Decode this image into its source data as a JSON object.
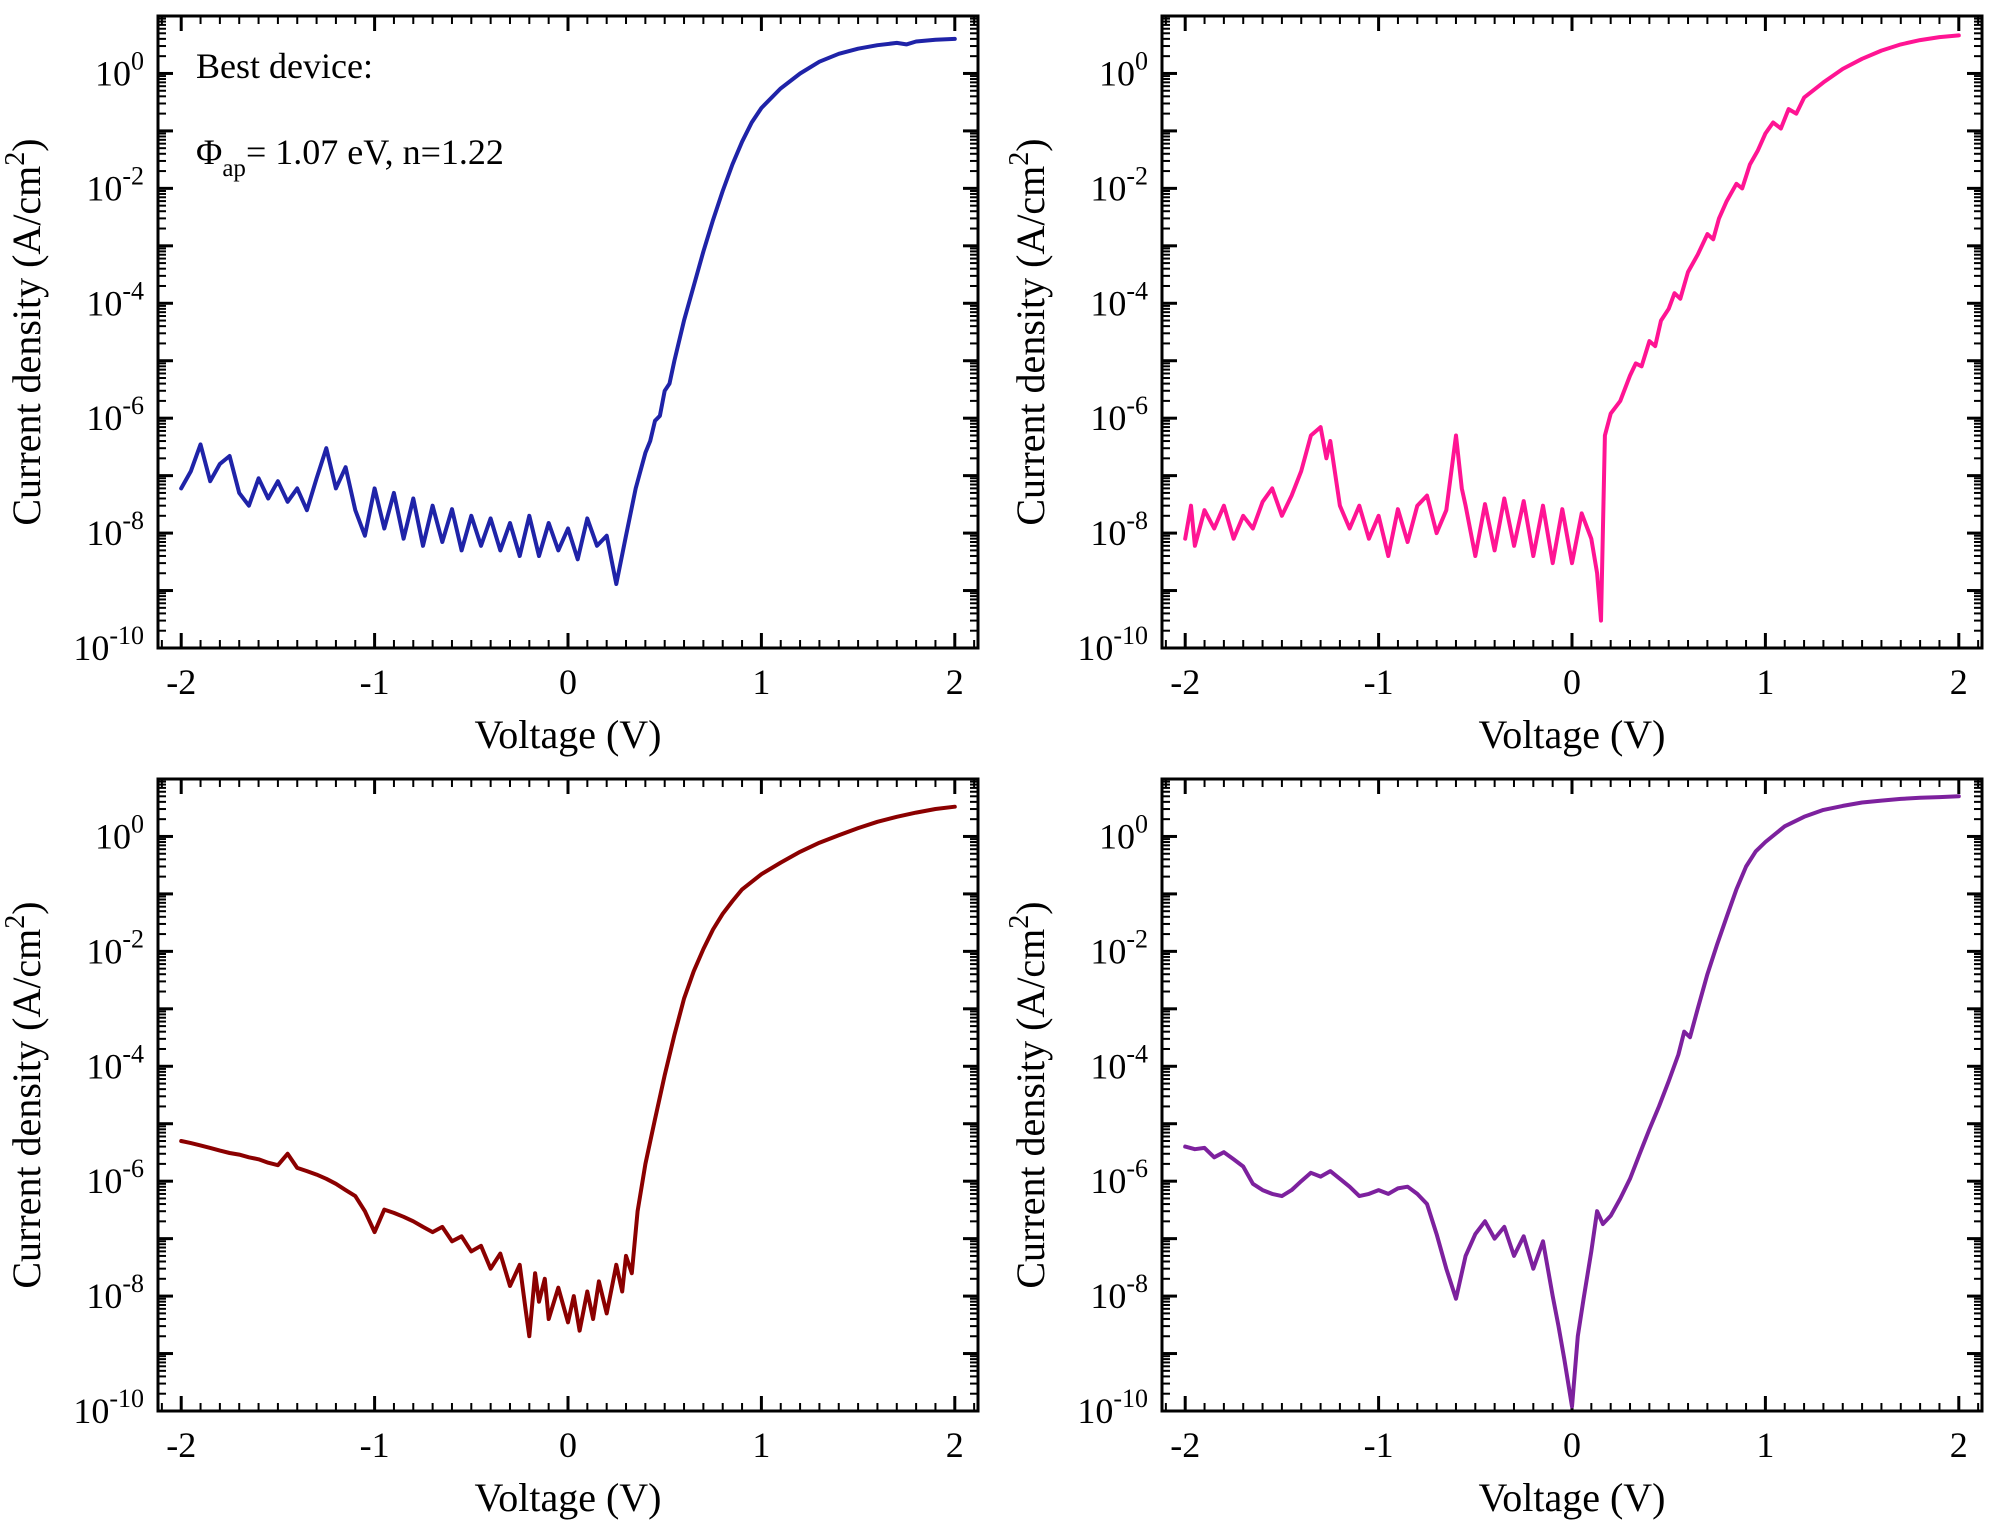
{
  "page": {
    "background": "#ffffff"
  },
  "axes": {
    "x_label": "Voltage (V)",
    "y_label_pre": "Current density (A/cm",
    "y_label_sup": "2",
    "y_label_post": ")",
    "x_ticks": [
      -2,
      -1,
      0,
      1,
      2
    ],
    "x_tick_labels": [
      "-2",
      "-1",
      "0",
      "1",
      "2"
    ],
    "x_minor_step": 0.1,
    "xlim_draw": [
      -2.12,
      2.12
    ],
    "y_decade_min": -10,
    "y_decade_max": 1,
    "y_label_decades": [
      0,
      -2,
      -4,
      -6,
      -8,
      -10
    ],
    "base_label": "10"
  },
  "annotation": {
    "line1": "Best device:",
    "phi": "Φ",
    "phi_sub": "ap",
    "line2_rest": "= 1.07 eV, n=1.22"
  },
  "chart_data": [
    {
      "type": "line",
      "position": "top-left",
      "color": "#1f23a8",
      "title": "",
      "xlabel": "Voltage (V)",
      "ylabel": "Current density (A/cm2)",
      "xlim": [
        -2,
        2
      ],
      "ylim": [
        1e-10,
        10
      ],
      "legend": "none",
      "grid": false,
      "annotation": true,
      "points": [
        [
          -2.0,
          6e-08
        ],
        [
          -1.95,
          1.2e-07
        ],
        [
          -1.9,
          3.5e-07
        ],
        [
          -1.85,
          8e-08
        ],
        [
          -1.8,
          1.6e-07
        ],
        [
          -1.75,
          2.2e-07
        ],
        [
          -1.7,
          5e-08
        ],
        [
          -1.65,
          3e-08
        ],
        [
          -1.6,
          9e-08
        ],
        [
          -1.55,
          4e-08
        ],
        [
          -1.5,
          8e-08
        ],
        [
          -1.45,
          3.5e-08
        ],
        [
          -1.4,
          6e-08
        ],
        [
          -1.35,
          2.5e-08
        ],
        [
          -1.3,
          9e-08
        ],
        [
          -1.25,
          3e-07
        ],
        [
          -1.2,
          6e-08
        ],
        [
          -1.15,
          1.4e-07
        ],
        [
          -1.1,
          2.5e-08
        ],
        [
          -1.05,
          9e-09
        ],
        [
          -1.0,
          6e-08
        ],
        [
          -0.95,
          1.2e-08
        ],
        [
          -0.9,
          5e-08
        ],
        [
          -0.85,
          8e-09
        ],
        [
          -0.8,
          4e-08
        ],
        [
          -0.75,
          6e-09
        ],
        [
          -0.7,
          3e-08
        ],
        [
          -0.65,
          7e-09
        ],
        [
          -0.6,
          2.6e-08
        ],
        [
          -0.55,
          5e-09
        ],
        [
          -0.5,
          2e-08
        ],
        [
          -0.45,
          6e-09
        ],
        [
          -0.4,
          1.8e-08
        ],
        [
          -0.35,
          5e-09
        ],
        [
          -0.3,
          1.5e-08
        ],
        [
          -0.25,
          4e-09
        ],
        [
          -0.2,
          2e-08
        ],
        [
          -0.15,
          4e-09
        ],
        [
          -0.1,
          1.5e-08
        ],
        [
          -0.05,
          5e-09
        ],
        [
          0.0,
          1.2e-08
        ],
        [
          0.05,
          3.5e-09
        ],
        [
          0.1,
          1.8e-08
        ],
        [
          0.15,
          6e-09
        ],
        [
          0.2,
          9e-09
        ],
        [
          0.25,
          1.3e-09
        ],
        [
          0.3,
          9e-09
        ],
        [
          0.35,
          6e-08
        ],
        [
          0.4,
          2.5e-07
        ],
        [
          0.425,
          4e-07
        ],
        [
          0.45,
          9e-07
        ],
        [
          0.475,
          1.1e-06
        ],
        [
          0.5,
          3e-06
        ],
        [
          0.525,
          4e-06
        ],
        [
          0.55,
          1e-05
        ],
        [
          0.6,
          5e-05
        ],
        [
          0.65,
          0.0002
        ],
        [
          0.7,
          0.0008
        ],
        [
          0.75,
          0.0028
        ],
        [
          0.8,
          0.009
        ],
        [
          0.85,
          0.026
        ],
        [
          0.9,
          0.065
        ],
        [
          0.95,
          0.14
        ],
        [
          1.0,
          0.25
        ],
        [
          1.1,
          0.55
        ],
        [
          1.2,
          1.0
        ],
        [
          1.3,
          1.6
        ],
        [
          1.4,
          2.2
        ],
        [
          1.5,
          2.7
        ],
        [
          1.6,
          3.1
        ],
        [
          1.7,
          3.4
        ],
        [
          1.75,
          3.2
        ],
        [
          1.8,
          3.6
        ],
        [
          1.9,
          3.85
        ],
        [
          2.0,
          4.0
        ]
      ]
    },
    {
      "type": "line",
      "position": "top-right",
      "color": "#ff1493",
      "title": "",
      "xlabel": "Voltage (V)",
      "ylabel": "Current density (A/cm2)",
      "xlim": [
        -2,
        2
      ],
      "ylim": [
        1e-10,
        10
      ],
      "legend": "none",
      "grid": false,
      "annotation": false,
      "points": [
        [
          -2.0,
          8e-09
        ],
        [
          -1.97,
          3e-08
        ],
        [
          -1.95,
          6e-09
        ],
        [
          -1.9,
          2.5e-08
        ],
        [
          -1.85,
          1.2e-08
        ],
        [
          -1.8,
          3e-08
        ],
        [
          -1.75,
          8e-09
        ],
        [
          -1.7,
          2e-08
        ],
        [
          -1.65,
          1.2e-08
        ],
        [
          -1.6,
          3.5e-08
        ],
        [
          -1.55,
          6e-08
        ],
        [
          -1.5,
          2e-08
        ],
        [
          -1.45,
          4.5e-08
        ],
        [
          -1.4,
          1.2e-07
        ],
        [
          -1.35,
          5e-07
        ],
        [
          -1.3,
          7e-07
        ],
        [
          -1.27,
          2e-07
        ],
        [
          -1.25,
          4e-07
        ],
        [
          -1.2,
          3e-08
        ],
        [
          -1.15,
          1.2e-08
        ],
        [
          -1.1,
          3e-08
        ],
        [
          -1.05,
          8e-09
        ],
        [
          -1.0,
          2e-08
        ],
        [
          -0.95,
          4e-09
        ],
        [
          -0.9,
          2.6e-08
        ],
        [
          -0.85,
          7e-09
        ],
        [
          -0.8,
          3e-08
        ],
        [
          -0.75,
          4.5e-08
        ],
        [
          -0.7,
          1e-08
        ],
        [
          -0.65,
          2.5e-08
        ],
        [
          -0.6,
          5e-07
        ],
        [
          -0.57,
          6e-08
        ],
        [
          -0.55,
          3e-08
        ],
        [
          -0.5,
          4e-09
        ],
        [
          -0.45,
          3.2e-08
        ],
        [
          -0.4,
          5e-09
        ],
        [
          -0.35,
          4e-08
        ],
        [
          -0.3,
          6e-09
        ],
        [
          -0.25,
          3.6e-08
        ],
        [
          -0.2,
          4e-09
        ],
        [
          -0.15,
          3e-08
        ],
        [
          -0.1,
          3e-09
        ],
        [
          -0.05,
          2.6e-08
        ],
        [
          0.0,
          3e-09
        ],
        [
          0.05,
          2.2e-08
        ],
        [
          0.1,
          8e-09
        ],
        [
          0.13,
          2e-09
        ],
        [
          0.15,
          3e-10
        ],
        [
          0.17,
          5e-07
        ],
        [
          0.2,
          1.2e-06
        ],
        [
          0.25,
          2e-06
        ],
        [
          0.3,
          5.5e-06
        ],
        [
          0.33,
          9e-06
        ],
        [
          0.36,
          8e-06
        ],
        [
          0.4,
          2.2e-05
        ],
        [
          0.43,
          1.8e-05
        ],
        [
          0.46,
          5e-05
        ],
        [
          0.5,
          8e-05
        ],
        [
          0.53,
          0.00015
        ],
        [
          0.56,
          0.00012
        ],
        [
          0.6,
          0.00035
        ],
        [
          0.65,
          0.0007
        ],
        [
          0.7,
          0.0016
        ],
        [
          0.73,
          0.0013
        ],
        [
          0.76,
          0.003
        ],
        [
          0.8,
          0.006
        ],
        [
          0.85,
          0.012
        ],
        [
          0.88,
          0.01
        ],
        [
          0.92,
          0.026
        ],
        [
          0.96,
          0.045
        ],
        [
          1.0,
          0.09
        ],
        [
          1.04,
          0.14
        ],
        [
          1.08,
          0.11
        ],
        [
          1.12,
          0.24
        ],
        [
          1.16,
          0.2
        ],
        [
          1.2,
          0.38
        ],
        [
          1.3,
          0.7
        ],
        [
          1.4,
          1.2
        ],
        [
          1.5,
          1.8
        ],
        [
          1.6,
          2.5
        ],
        [
          1.7,
          3.2
        ],
        [
          1.8,
          3.8
        ],
        [
          1.9,
          4.3
        ],
        [
          2.0,
          4.6
        ]
      ]
    },
    {
      "type": "line",
      "position": "bottom-left",
      "color": "#8b0000",
      "title": "",
      "xlabel": "Voltage (V)",
      "ylabel": "Current density (A/cm2)",
      "xlim": [
        -2,
        2
      ],
      "ylim": [
        1e-10,
        10
      ],
      "legend": "none",
      "grid": false,
      "annotation": false,
      "points": [
        [
          -2.0,
          5e-06
        ],
        [
          -1.95,
          4.6e-06
        ],
        [
          -1.9,
          4.2e-06
        ],
        [
          -1.85,
          3.8e-06
        ],
        [
          -1.8,
          3.4e-06
        ],
        [
          -1.75,
          3.1e-06
        ],
        [
          -1.7,
          2.9e-06
        ],
        [
          -1.65,
          2.6e-06
        ],
        [
          -1.6,
          2.4e-06
        ],
        [
          -1.55,
          2.1e-06
        ],
        [
          -1.5,
          1.9e-06
        ],
        [
          -1.45,
          3e-06
        ],
        [
          -1.4,
          1.7e-06
        ],
        [
          -1.35,
          1.5e-06
        ],
        [
          -1.3,
          1.3e-06
        ],
        [
          -1.25,
          1.1e-06
        ],
        [
          -1.2,
          9e-07
        ],
        [
          -1.15,
          7e-07
        ],
        [
          -1.1,
          5.5e-07
        ],
        [
          -1.05,
          3e-07
        ],
        [
          -1.0,
          1.3e-07
        ],
        [
          -0.95,
          3.2e-07
        ],
        [
          -0.9,
          2.8e-07
        ],
        [
          -0.85,
          2.4e-07
        ],
        [
          -0.8,
          2e-07
        ],
        [
          -0.75,
          1.6e-07
        ],
        [
          -0.7,
          1.3e-07
        ],
        [
          -0.65,
          1.6e-07
        ],
        [
          -0.6,
          9e-08
        ],
        [
          -0.55,
          1.1e-07
        ],
        [
          -0.5,
          6e-08
        ],
        [
          -0.45,
          7.5e-08
        ],
        [
          -0.4,
          3e-08
        ],
        [
          -0.35,
          5.5e-08
        ],
        [
          -0.3,
          1.5e-08
        ],
        [
          -0.25,
          3.5e-08
        ],
        [
          -0.22,
          6e-09
        ],
        [
          -0.2,
          2e-09
        ],
        [
          -0.17,
          2.5e-08
        ],
        [
          -0.15,
          8e-09
        ],
        [
          -0.12,
          2e-08
        ],
        [
          -0.1,
          4e-09
        ],
        [
          -0.05,
          1.4e-08
        ],
        [
          0.0,
          3.5e-09
        ],
        [
          0.03,
          1e-08
        ],
        [
          0.06,
          2.5e-09
        ],
        [
          0.1,
          1.2e-08
        ],
        [
          0.13,
          4e-09
        ],
        [
          0.16,
          1.8e-08
        ],
        [
          0.2,
          5e-09
        ],
        [
          0.25,
          3.5e-08
        ],
        [
          0.28,
          1.2e-08
        ],
        [
          0.3,
          5e-08
        ],
        [
          0.33,
          2.5e-08
        ],
        [
          0.36,
          3e-07
        ],
        [
          0.4,
          2e-06
        ],
        [
          0.45,
          1.2e-05
        ],
        [
          0.5,
          7e-05
        ],
        [
          0.55,
          0.00035
        ],
        [
          0.6,
          0.0015
        ],
        [
          0.65,
          0.0045
        ],
        [
          0.7,
          0.011
        ],
        [
          0.75,
          0.024
        ],
        [
          0.8,
          0.045
        ],
        [
          0.85,
          0.075
        ],
        [
          0.9,
          0.12
        ],
        [
          1.0,
          0.22
        ],
        [
          1.1,
          0.35
        ],
        [
          1.2,
          0.54
        ],
        [
          1.3,
          0.78
        ],
        [
          1.4,
          1.05
        ],
        [
          1.5,
          1.4
        ],
        [
          1.6,
          1.8
        ],
        [
          1.7,
          2.2
        ],
        [
          1.8,
          2.6
        ],
        [
          1.9,
          3.0
        ],
        [
          2.0,
          3.3
        ]
      ]
    },
    {
      "type": "line",
      "position": "bottom-right",
      "color": "#7d219e",
      "title": "",
      "xlabel": "Voltage (V)",
      "ylabel": "Current density (A/cm2)",
      "xlim": [
        -2,
        2
      ],
      "ylim": [
        1e-10,
        10
      ],
      "legend": "none",
      "grid": false,
      "annotation": false,
      "points": [
        [
          -2.0,
          4e-06
        ],
        [
          -1.95,
          3.6e-06
        ],
        [
          -1.9,
          3.8e-06
        ],
        [
          -1.85,
          2.6e-06
        ],
        [
          -1.8,
          3.2e-06
        ],
        [
          -1.75,
          2.4e-06
        ],
        [
          -1.7,
          1.8e-06
        ],
        [
          -1.65,
          9e-07
        ],
        [
          -1.6,
          7e-07
        ],
        [
          -1.55,
          6e-07
        ],
        [
          -1.5,
          5.5e-07
        ],
        [
          -1.45,
          7e-07
        ],
        [
          -1.4,
          1e-06
        ],
        [
          -1.35,
          1.4e-06
        ],
        [
          -1.3,
          1.2e-06
        ],
        [
          -1.25,
          1.5e-06
        ],
        [
          -1.2,
          1.1e-06
        ],
        [
          -1.15,
          8e-07
        ],
        [
          -1.1,
          5.5e-07
        ],
        [
          -1.05,
          6e-07
        ],
        [
          -1.0,
          7e-07
        ],
        [
          -0.95,
          6e-07
        ],
        [
          -0.9,
          7.5e-07
        ],
        [
          -0.85,
          8e-07
        ],
        [
          -0.8,
          6e-07
        ],
        [
          -0.75,
          4e-07
        ],
        [
          -0.7,
          1.2e-07
        ],
        [
          -0.65,
          3e-08
        ],
        [
          -0.6,
          9e-09
        ],
        [
          -0.55,
          5e-08
        ],
        [
          -0.5,
          1.2e-07
        ],
        [
          -0.45,
          2e-07
        ],
        [
          -0.4,
          1e-07
        ],
        [
          -0.35,
          1.6e-07
        ],
        [
          -0.3,
          5e-08
        ],
        [
          -0.25,
          1.1e-07
        ],
        [
          -0.2,
          3e-08
        ],
        [
          -0.15,
          9e-08
        ],
        [
          -0.1,
          1e-08
        ],
        [
          -0.07,
          3e-09
        ],
        [
          -0.04,
          8e-10
        ],
        [
          0.0,
          1.2e-10
        ],
        [
          0.03,
          2e-09
        ],
        [
          0.06,
          9e-09
        ],
        [
          0.1,
          6e-08
        ],
        [
          0.13,
          3e-07
        ],
        [
          0.16,
          1.8e-07
        ],
        [
          0.2,
          2.5e-07
        ],
        [
          0.25,
          5e-07
        ],
        [
          0.3,
          1.1e-06
        ],
        [
          0.35,
          3e-06
        ],
        [
          0.4,
          8e-06
        ],
        [
          0.45,
          2e-05
        ],
        [
          0.5,
          5.5e-05
        ],
        [
          0.55,
          0.00016
        ],
        [
          0.58,
          0.0004
        ],
        [
          0.61,
          0.00032
        ],
        [
          0.65,
          0.001
        ],
        [
          0.7,
          0.004
        ],
        [
          0.75,
          0.013
        ],
        [
          0.8,
          0.04
        ],
        [
          0.85,
          0.12
        ],
        [
          0.9,
          0.3
        ],
        [
          0.95,
          0.55
        ],
        [
          1.0,
          0.8
        ],
        [
          1.1,
          1.5
        ],
        [
          1.2,
          2.2
        ],
        [
          1.3,
          2.9
        ],
        [
          1.4,
          3.4
        ],
        [
          1.5,
          3.9
        ],
        [
          1.6,
          4.2
        ],
        [
          1.7,
          4.5
        ],
        [
          1.8,
          4.7
        ],
        [
          1.9,
          4.85
        ],
        [
          2.0,
          5.0
        ]
      ]
    }
  ]
}
